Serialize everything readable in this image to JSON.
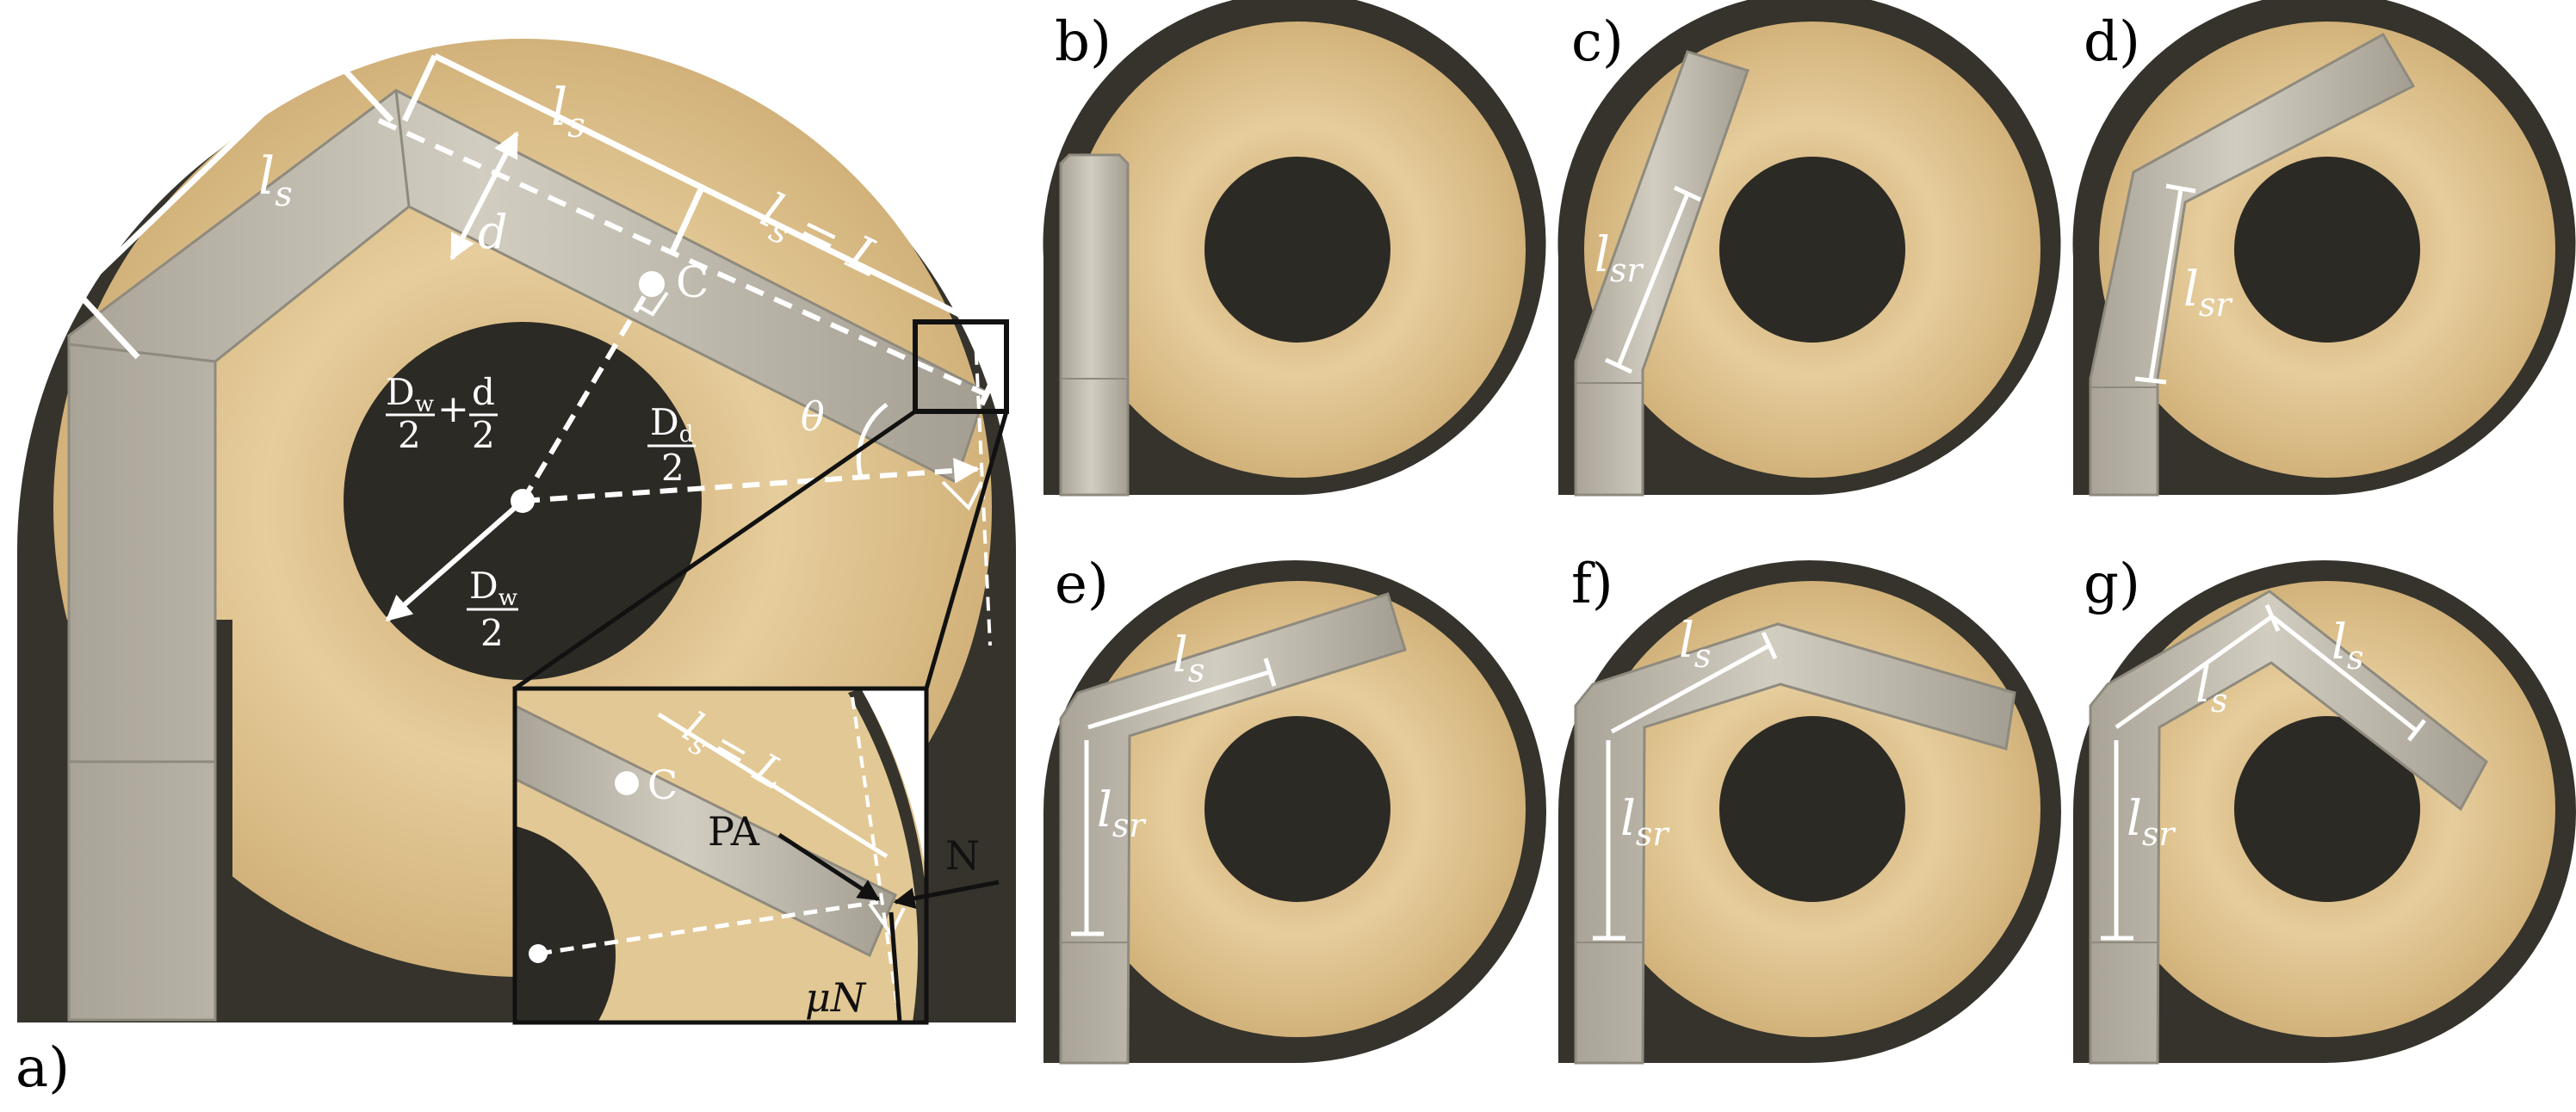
{
  "panels": {
    "a": "a)",
    "b": "b)",
    "c": "c)",
    "d": "d)",
    "e": "e)",
    "f": "f)",
    "g": "g)"
  },
  "labels": {
    "ls": "l",
    "ls_sub": "s",
    "lsr_sub": "sr",
    "ls_eq_L": "= L",
    "d": "d",
    "c": "C",
    "theta": "θ",
    "Dw": "D",
    "Dw_sub": "w",
    "Dd": "D",
    "Dd_sub": "d",
    "two": "2",
    "plus": "+",
    "d_small": "d",
    "PA": "PA",
    "N": "N",
    "muN": "μN"
  },
  "colors": {
    "background": "#ffffff",
    "casing": "#35332c",
    "tan": "#dcc08c",
    "tan_light": "#e8d2a6",
    "tube": "#c9c4b8",
    "tube_edge": "#8f8a7e",
    "core": "#2c2a25"
  }
}
